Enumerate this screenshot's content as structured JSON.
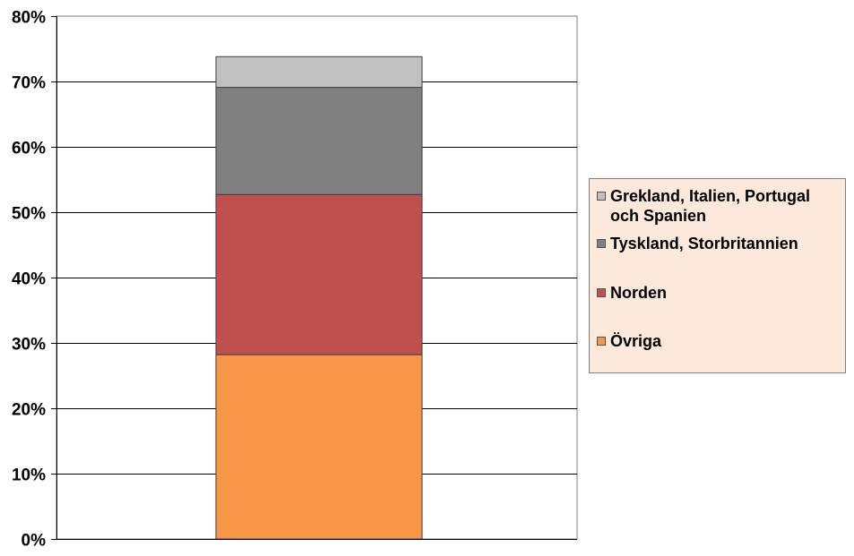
{
  "chart_data": {
    "type": "bar",
    "stacked": true,
    "categories": [
      ""
    ],
    "series": [
      {
        "name": "Övriga",
        "values": [
          28.2
        ],
        "color": "#f79646"
      },
      {
        "name": "Norden",
        "values": [
          24.5
        ],
        "color": "#c0504d"
      },
      {
        "name": "Tyskland, Storbritannien",
        "values": [
          16.4
        ],
        "color": "#808080"
      },
      {
        "name": "Grekland, Italien, Portugal och Spanien",
        "values": [
          4.7
        ],
        "color": "#c0c0c0"
      }
    ],
    "ylim": [
      0,
      80
    ],
    "yticks": [
      "0%",
      "10%",
      "20%",
      "30%",
      "40%",
      "50%",
      "60%",
      "70%",
      "80%"
    ],
    "grid": true,
    "legend_position": "right",
    "legend_background": "#fce9dc",
    "legend_order": [
      3,
      2,
      1,
      0
    ]
  }
}
